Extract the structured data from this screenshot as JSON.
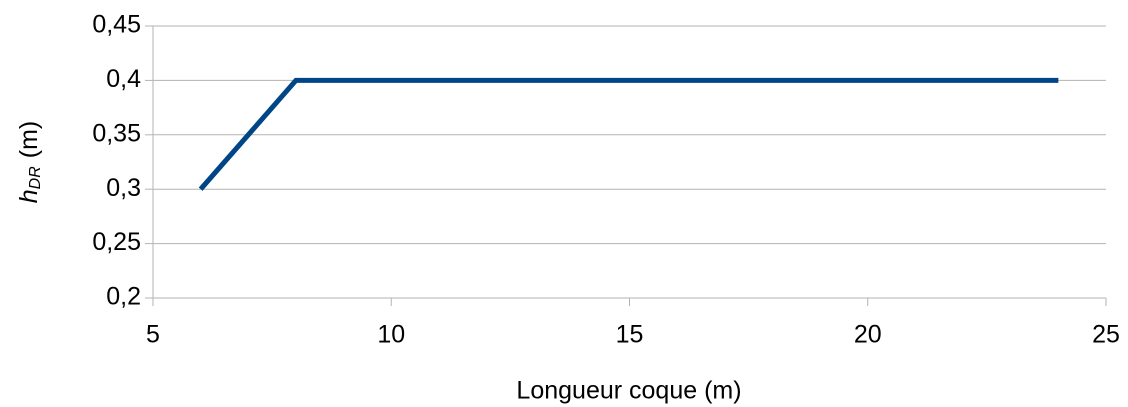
{
  "chart_data": {
    "type": "line",
    "xlabel": "Longueur coque (m)",
    "ylabel": [
      "h",
      "DR",
      "(m)"
    ],
    "x": [
      6,
      8,
      24
    ],
    "series": [
      {
        "name": "hDR",
        "color": "#004586",
        "values": [
          0.3,
          0.4,
          0.4
        ]
      }
    ],
    "xlim": [
      5,
      25
    ],
    "xticks": [
      5,
      10,
      15,
      20,
      25
    ],
    "ylim": [
      0.2,
      0.45
    ],
    "yticks": [
      {
        "value": 0.2,
        "label": "0,2"
      },
      {
        "value": 0.25,
        "label": "0,25"
      },
      {
        "value": 0.3,
        "label": "0,3"
      },
      {
        "value": 0.35,
        "label": "0,35"
      },
      {
        "value": 0.4,
        "label": "0,4"
      },
      {
        "value": 0.45,
        "label": "0,45"
      }
    ],
    "grid": true
  }
}
